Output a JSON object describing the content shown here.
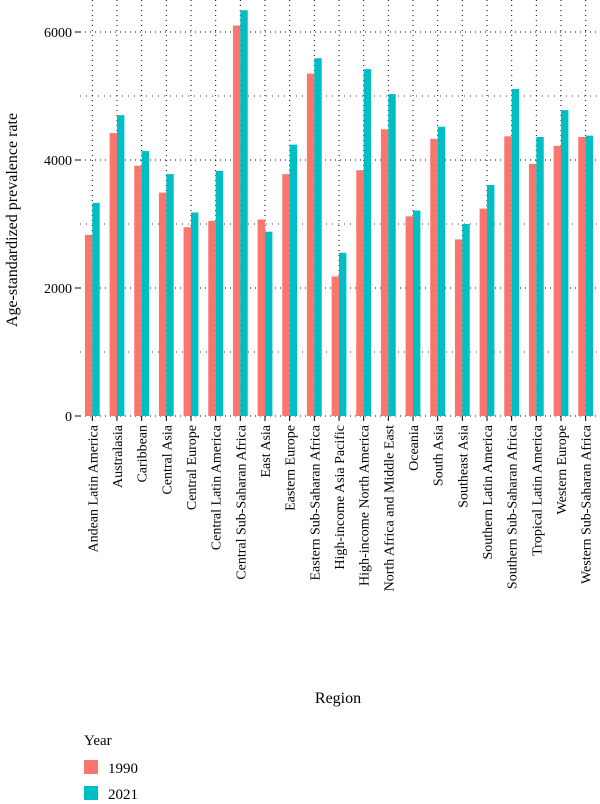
{
  "chart_data": {
    "type": "bar",
    "xlabel": "Region",
    "ylabel": "Age-standardized prevalence rate",
    "ylim": [
      0,
      6500
    ],
    "yticks": [
      0,
      2000,
      4000,
      6000
    ],
    "grid": true,
    "legend_position": "bottom-left",
    "legend_title": "Year",
    "categories": [
      "Andean Latin America",
      "Australasia",
      "Caribbean",
      "Central Asia",
      "Central Europe",
      "Central Latin America",
      "Central Sub-Saharan Africa",
      "East Asia",
      "Eastern Europe",
      "Eastern Sub-Saharan Africa",
      "High-income Asia Pacific",
      "High-income North America",
      "North Africa and Middle East",
      "Oceania",
      "South Asia",
      "Southeast Asia",
      "Southern Latin America",
      "Southern Sub-Saharan Africa",
      "Tropical Latin America",
      "Western Europe",
      "Western Sub-Saharan Africa"
    ],
    "series": [
      {
        "name": "1990",
        "color": "#F8766D",
        "values": [
          2830,
          4420,
          3910,
          3490,
          2950,
          3050,
          6100,
          3070,
          3780,
          5350,
          2180,
          3840,
          4480,
          3120,
          4330,
          2760,
          3240,
          4370,
          3940,
          4220,
          4360
        ]
      },
      {
        "name": "2021",
        "color": "#00BFC4",
        "values": [
          3330,
          4700,
          4140,
          3780,
          3180,
          3830,
          6340,
          2880,
          4240,
          5590,
          2550,
          5420,
          5030,
          3210,
          4520,
          3000,
          3610,
          5110,
          4360,
          4780,
          4380
        ]
      }
    ]
  }
}
